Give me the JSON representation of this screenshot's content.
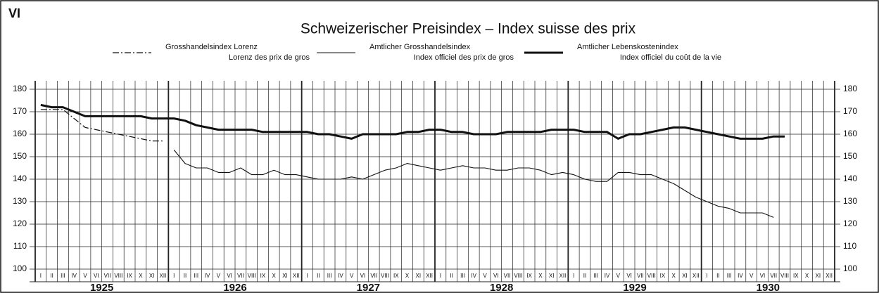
{
  "chart_data": {
    "type": "line",
    "panel": "VI",
    "title": "Schweizerischer Preisindex – Index suisse des prix",
    "categories": [
      "I",
      "II",
      "III",
      "IV",
      "V",
      "VI",
      "VII",
      "VIII",
      "IX",
      "X",
      "XI",
      "XII",
      "I",
      "II",
      "III",
      "IV",
      "V",
      "VI",
      "VII",
      "VIII",
      "IX",
      "X",
      "XI",
      "XII",
      "I",
      "II",
      "III",
      "IV",
      "V",
      "VI",
      "VII",
      "VIII",
      "IX",
      "X",
      "XI",
      "XII",
      "I",
      "II",
      "III",
      "IV",
      "V",
      "VI",
      "VII",
      "VIII",
      "IX",
      "X",
      "XI",
      "XII",
      "I",
      "II",
      "III",
      "IV",
      "V",
      "VI",
      "VII",
      "VIII",
      "IX",
      "X",
      "XI",
      "XII",
      "I",
      "II",
      "III",
      "IV",
      "V",
      "VI",
      "VII",
      "VIII",
      "IX",
      "X",
      "XI",
      "XII"
    ],
    "year_labels": [
      "1925",
      "1926",
      "1927",
      "1928",
      "1929",
      "1930"
    ],
    "series": [
      {
        "name": "Grosshandelsindex Lorenz",
        "name_fr": "Lorenz des prix de gros",
        "color": "#111",
        "style": "dashdot",
        "values": [
          171,
          171,
          171,
          167,
          163,
          162,
          161,
          160,
          159,
          158,
          157,
          157,
          null,
          null,
          null,
          null,
          null,
          null,
          null,
          null,
          null,
          null,
          null,
          null,
          null,
          null,
          null,
          null,
          null,
          null,
          null,
          null,
          null,
          null,
          null,
          null,
          null,
          null,
          null,
          null,
          null,
          null,
          null,
          null,
          null,
          null,
          null,
          null,
          null,
          null,
          null,
          null,
          null,
          null,
          null,
          null,
          null,
          null,
          null,
          null,
          null,
          null,
          null,
          null,
          null,
          null,
          null,
          null,
          null,
          null,
          null,
          null
        ]
      },
      {
        "name": "Amtlicher Grosshandelsindex",
        "name_fr": "Index officiel des prix de gros",
        "color": "#111",
        "style": "thin",
        "values": [
          null,
          null,
          null,
          null,
          null,
          null,
          null,
          null,
          null,
          null,
          null,
          null,
          153,
          147,
          145,
          145,
          143,
          143,
          145,
          142,
          142,
          144,
          142,
          142,
          141,
          140,
          140,
          140,
          141,
          140,
          142,
          144,
          145,
          147,
          146,
          145,
          144,
          145,
          146,
          145,
          145,
          144,
          144,
          145,
          145,
          144,
          142,
          143,
          142,
          140,
          139,
          139,
          143,
          143,
          142,
          142,
          140,
          138,
          135,
          132,
          130,
          128,
          127,
          125,
          125,
          125,
          123,
          null,
          null,
          null,
          null,
          null
        ]
      },
      {
        "name": "Amtlicher Lebenskostenindex",
        "name_fr": "Index officiel du coût de la vie",
        "color": "#111",
        "style": "thick",
        "values": [
          173,
          172,
          172,
          170,
          168,
          168,
          168,
          168,
          168,
          168,
          167,
          167,
          167,
          166,
          164,
          163,
          162,
          162,
          162,
          162,
          161,
          161,
          161,
          161,
          161,
          160,
          160,
          159,
          158,
          160,
          160,
          160,
          160,
          161,
          161,
          162,
          162,
          161,
          161,
          160,
          160,
          160,
          161,
          161,
          161,
          161,
          162,
          162,
          162,
          161,
          161,
          161,
          158,
          160,
          160,
          161,
          162,
          163,
          163,
          162,
          161,
          160,
          159,
          158,
          158,
          158,
          159,
          159,
          null,
          null,
          null,
          null
        ]
      }
    ],
    "ylim": [
      100,
      180
    ],
    "yticks": [
      100,
      110,
      120,
      130,
      140,
      150,
      160,
      170,
      180
    ],
    "grid": true
  }
}
